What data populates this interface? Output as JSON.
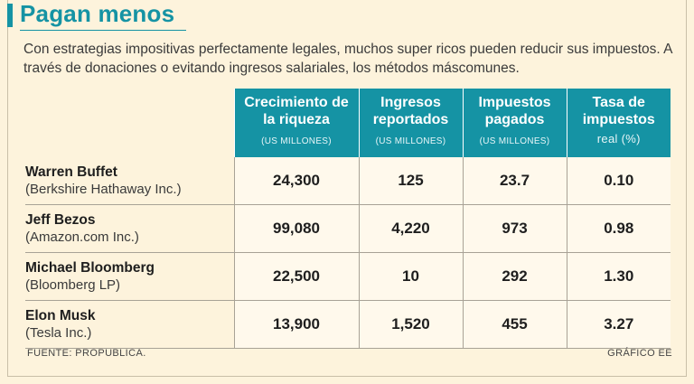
{
  "title": "Pagan menos",
  "subtitle": "Con estrategias impositivas perfectamente legales, muchos super ricos pueden reducir sus impuestos. A través de donaciones o evitando ingresos salariales, los métodos máscomunes.",
  "source": "FUENTE: PROPUBLICA.",
  "credit": "GRÁFICO EE",
  "colors": {
    "accent": "#1593a4",
    "background": "#fdf3dc"
  },
  "chart_data": {
    "type": "table",
    "title": "Pagan menos",
    "columns": [
      {
        "label": "Crecimiento de la riqueza",
        "unit": "(US MILLONES)"
      },
      {
        "label": "Ingresos reportados",
        "unit": "(US MILLONES)"
      },
      {
        "label": "Impuestos pagados",
        "unit": "(US MILLONES)"
      },
      {
        "label": "Tasa de impuestos",
        "unit": "real (%)"
      }
    ],
    "rows": [
      {
        "name": "Warren Buffet",
        "company": "(Berkshire Hathaway Inc.)",
        "values": [
          "24,300",
          "125",
          "23.7",
          "0.10"
        ]
      },
      {
        "name": "Jeff Bezos",
        "company": "(Amazon.com Inc.)",
        "values": [
          "99,080",
          "4,220",
          "973",
          "0.98"
        ]
      },
      {
        "name": "Michael Bloomberg",
        "company": "(Bloomberg LP)",
        "values": [
          "22,500",
          "10",
          "292",
          "1.30"
        ]
      },
      {
        "name": "Elon Musk",
        "company": "(Tesla Inc.)",
        "values": [
          "13,900",
          "1,520",
          "455",
          "3.27"
        ]
      }
    ]
  }
}
